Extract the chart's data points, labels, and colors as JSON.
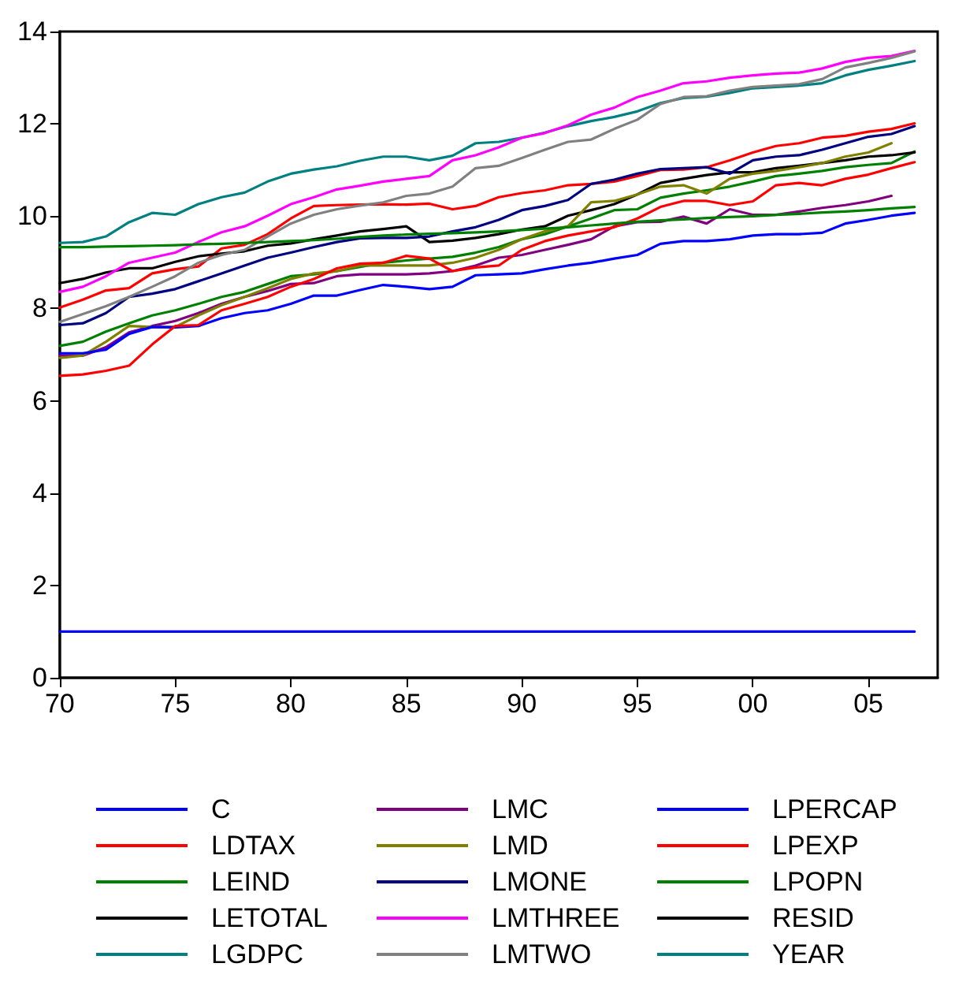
{
  "chart_data": {
    "type": "line",
    "x": [
      1970,
      1971,
      1972,
      1973,
      1974,
      1975,
      1976,
      1977,
      1978,
      1979,
      1980,
      1981,
      1982,
      1983,
      1984,
      1985,
      1986,
      1987,
      1988,
      1989,
      1990,
      1991,
      1992,
      1993,
      1994,
      1995,
      1996,
      1997,
      1998,
      1999,
      2000,
      2001,
      2002,
      2003,
      2004,
      2005,
      2006,
      2007
    ],
    "xlim": [
      1970,
      2008
    ],
    "xticks": [
      {
        "value": 1970,
        "label": "70"
      },
      {
        "value": 1975,
        "label": "75"
      },
      {
        "value": 1980,
        "label": "80"
      },
      {
        "value": 1985,
        "label": "85"
      },
      {
        "value": 1990,
        "label": "90"
      },
      {
        "value": 1995,
        "label": "95"
      },
      {
        "value": 2000,
        "label": "00"
      },
      {
        "value": 2005,
        "label": "05"
      }
    ],
    "ylim": [
      0,
      14
    ],
    "yticks": [
      0,
      2,
      4,
      6,
      8,
      10,
      12,
      14
    ],
    "grid": false,
    "legend": "bottom",
    "marker": "none",
    "line_style": "solid",
    "series": [
      {
        "name": "C",
        "color": "#0000ff",
        "values": [
          1,
          1,
          1,
          1,
          1,
          1,
          1,
          1,
          1,
          1,
          1,
          1,
          1,
          1,
          1,
          1,
          1,
          1,
          1,
          1,
          1,
          1,
          1,
          1,
          1,
          1,
          1,
          1,
          1,
          1,
          1,
          1,
          1,
          1,
          1,
          1,
          1,
          1
        ]
      },
      {
        "name": "LDTAX",
        "color": "#ff0000",
        "values": [
          8.02,
          8.19,
          8.39,
          8.44,
          8.76,
          8.85,
          8.91,
          9.3,
          9.38,
          9.61,
          9.95,
          10.22,
          10.24,
          10.25,
          10.26,
          10.25,
          10.27,
          10.15,
          10.22,
          10.41,
          10.5,
          10.56,
          10.67,
          10.7,
          10.75,
          10.87,
          11.0,
          11.01,
          11.06,
          11.21,
          11.38,
          11.52,
          11.58,
          11.7,
          11.74,
          11.83,
          11.89,
          12.01
        ]
      },
      {
        "name": "LEIND",
        "color": "#008000",
        "values": [
          7.19,
          7.28,
          7.5,
          7.68,
          7.85,
          7.96,
          8.1,
          8.25,
          8.36,
          8.53,
          8.7,
          8.74,
          8.81,
          8.9,
          8.99,
          9.04,
          9.08,
          9.12,
          9.21,
          9.33,
          9.5,
          9.61,
          9.78,
          9.95,
          10.13,
          10.15,
          10.4,
          10.49,
          10.56,
          10.64,
          10.75,
          10.87,
          10.92,
          10.98,
          11.06,
          11.11,
          11.15,
          11.4
        ]
      },
      {
        "name": "LETOTAL",
        "color": "#000000",
        "values": [
          8.55,
          8.64,
          8.78,
          8.87,
          8.87,
          9.01,
          9.13,
          9.19,
          9.24,
          9.36,
          9.41,
          9.5,
          9.58,
          9.67,
          9.72,
          9.78,
          9.44,
          9.47,
          9.53,
          9.61,
          9.71,
          9.78,
          10.01,
          10.13,
          10.26,
          10.47,
          10.72,
          10.81,
          10.89,
          10.95,
          10.95,
          11.04,
          11.09,
          11.15,
          11.21,
          11.29,
          11.32,
          11.38
        ]
      },
      {
        "name": "LGDPC",
        "color": "#008080",
        "values": [
          9.42,
          9.44,
          9.56,
          9.87,
          10.07,
          10.03,
          10.26,
          10.41,
          10.51,
          10.75,
          10.92,
          11.01,
          11.08,
          11.2,
          11.29,
          11.29,
          11.21,
          11.31,
          11.58,
          11.61,
          11.7,
          11.81,
          11.95,
          12.06,
          12.15,
          12.27,
          12.45,
          12.56,
          12.59,
          12.67,
          12.77,
          12.8,
          12.83,
          12.88,
          13.05,
          13.17,
          13.26,
          13.36
        ]
      },
      {
        "name": "LMC",
        "color": "#800080",
        "values": [
          6.98,
          6.98,
          7.16,
          7.48,
          7.62,
          7.73,
          7.9,
          8.1,
          8.25,
          8.38,
          8.53,
          8.55,
          8.7,
          8.74,
          8.74,
          8.74,
          8.76,
          8.81,
          8.93,
          9.1,
          9.16,
          9.27,
          9.38,
          9.5,
          9.78,
          9.87,
          9.88,
          9.99,
          9.84,
          10.15,
          10.03,
          10.03,
          10.1,
          10.18,
          10.24,
          10.32,
          10.44,
          null
        ]
      },
      {
        "name": "LMD",
        "color": "#808000",
        "values": [
          6.93,
          6.98,
          7.28,
          7.62,
          7.6,
          7.6,
          7.85,
          8.07,
          8.25,
          8.44,
          8.64,
          8.76,
          8.81,
          8.93,
          8.93,
          8.93,
          8.93,
          8.99,
          9.1,
          9.27,
          9.5,
          9.67,
          9.78,
          10.3,
          10.33,
          10.47,
          10.64,
          10.67,
          10.49,
          10.81,
          10.92,
          10.98,
          11.06,
          11.15,
          11.29,
          11.38,
          11.58,
          null
        ]
      },
      {
        "name": "LMONE",
        "color": "#000080",
        "values": [
          7.64,
          7.68,
          7.9,
          8.25,
          8.32,
          8.42,
          8.59,
          8.76,
          8.93,
          9.1,
          9.21,
          9.33,
          9.44,
          9.52,
          9.53,
          9.53,
          9.56,
          9.67,
          9.76,
          9.92,
          10.13,
          10.22,
          10.35,
          10.7,
          10.79,
          10.92,
          11.02,
          11.04,
          11.06,
          10.92,
          11.21,
          11.29,
          11.32,
          11.44,
          11.58,
          11.72,
          11.78,
          11.95
        ]
      },
      {
        "name": "LMTHREE",
        "color": "#ff00ff",
        "values": [
          8.36,
          8.47,
          8.7,
          8.99,
          9.1,
          9.21,
          9.44,
          9.65,
          9.78,
          10.01,
          10.26,
          10.41,
          10.58,
          10.66,
          10.75,
          10.81,
          10.87,
          11.21,
          11.32,
          11.49,
          11.7,
          11.8,
          11.97,
          12.2,
          12.35,
          12.58,
          12.72,
          12.88,
          12.92,
          13.0,
          13.05,
          13.09,
          13.11,
          13.2,
          13.34,
          13.43,
          13.47,
          13.58
        ]
      },
      {
        "name": "LMTWO",
        "color": "#808080",
        "values": [
          7.71,
          7.88,
          8.05,
          8.25,
          8.47,
          8.7,
          8.99,
          9.16,
          9.27,
          9.56,
          9.84,
          10.03,
          10.15,
          10.23,
          10.3,
          10.44,
          10.49,
          10.64,
          11.04,
          11.09,
          11.26,
          11.44,
          11.61,
          11.66,
          11.89,
          12.09,
          12.43,
          12.58,
          12.6,
          12.72,
          12.8,
          12.83,
          12.86,
          12.97,
          13.22,
          13.32,
          13.43,
          13.57
        ]
      },
      {
        "name": "LPERCAP",
        "color": "#0000ff",
        "values": [
          7.03,
          7.03,
          7.11,
          7.45,
          7.6,
          7.59,
          7.62,
          7.79,
          7.9,
          7.96,
          8.1,
          8.28,
          8.28,
          8.4,
          8.51,
          8.47,
          8.42,
          8.47,
          8.72,
          8.74,
          8.76,
          8.85,
          8.93,
          8.99,
          9.08,
          9.16,
          9.4,
          9.46,
          9.46,
          9.5,
          9.58,
          9.61,
          9.61,
          9.64,
          9.84,
          9.92,
          10.01,
          10.07
        ]
      },
      {
        "name": "LPEXP",
        "color": "#ff0000",
        "values": [
          6.54,
          6.57,
          6.65,
          6.76,
          7.22,
          7.62,
          7.64,
          7.96,
          8.1,
          8.25,
          8.47,
          8.64,
          8.87,
          8.97,
          8.99,
          9.14,
          9.08,
          8.81,
          8.89,
          8.93,
          9.27,
          9.46,
          9.58,
          9.67,
          9.76,
          9.95,
          10.2,
          10.33,
          10.33,
          10.24,
          10.32,
          10.67,
          10.72,
          10.67,
          10.81,
          10.9,
          11.04,
          11.17
        ]
      },
      {
        "name": "LPOPN",
        "color": "#008000",
        "values": [
          9.33,
          9.33,
          9.34,
          9.35,
          9.36,
          9.37,
          9.39,
          9.4,
          9.42,
          9.44,
          9.46,
          9.48,
          9.51,
          9.55,
          9.58,
          9.6,
          9.62,
          9.63,
          9.65,
          9.67,
          9.7,
          9.73,
          9.76,
          9.8,
          9.84,
          9.88,
          9.91,
          9.93,
          9.96,
          9.98,
          10.0,
          10.03,
          10.05,
          10.08,
          10.1,
          10.13,
          10.17,
          10.2
        ]
      },
      {
        "name": "RESID",
        "color": "#000000",
        "values": [
          null,
          null,
          null,
          null,
          null,
          null,
          null,
          null,
          null,
          null,
          null,
          null,
          null,
          null,
          null,
          null,
          null,
          null,
          null,
          null,
          null,
          null,
          null,
          null,
          null,
          null,
          null,
          null,
          null,
          null,
          null,
          null,
          null,
          null,
          null,
          null,
          null,
          null
        ]
      },
      {
        "name": "YEAR",
        "color": "#008080",
        "values": [
          null,
          null,
          null,
          null,
          null,
          null,
          null,
          null,
          null,
          null,
          null,
          null,
          null,
          null,
          null,
          null,
          null,
          null,
          null,
          null,
          null,
          null,
          null,
          null,
          null,
          null,
          null,
          null,
          null,
          null,
          null,
          null,
          null,
          null,
          null,
          null,
          null,
          null
        ]
      }
    ]
  }
}
